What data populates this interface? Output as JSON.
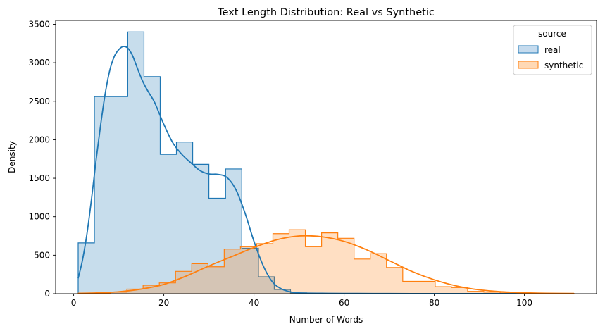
{
  "chart_data": {
    "type": "histogram",
    "title": "Text Length Distribution: Real vs Synthetic",
    "xlabel": "Number of Words",
    "ylabel": "Density",
    "xlim": [
      -4,
      116
    ],
    "ylim": [
      0,
      3550
    ],
    "x_ticks": [
      0,
      20,
      40,
      60,
      80,
      100
    ],
    "y_ticks": [
      0,
      500,
      1000,
      1500,
      2000,
      2500,
      3000,
      3500
    ],
    "grid": false,
    "legend": {
      "title": "source",
      "placement": "top-right",
      "entries": [
        "real",
        "synthetic"
      ]
    },
    "series": [
      {
        "name": "real",
        "color": "#1f77b4",
        "fill": "#c5dbee",
        "bins": [
          {
            "x0": 1,
            "x1": 4.6,
            "y": 660
          },
          {
            "x0": 4.6,
            "x1": 12,
            "y": 2560
          },
          {
            "x0": 12,
            "x1": 15.6,
            "y": 3400
          },
          {
            "x0": 15.6,
            "x1": 19.2,
            "y": 2820
          },
          {
            "x0": 19.2,
            "x1": 22.8,
            "y": 1810
          },
          {
            "x0": 22.8,
            "x1": 26.4,
            "y": 1970
          },
          {
            "x0": 26.4,
            "x1": 30,
            "y": 1680
          },
          {
            "x0": 30,
            "x1": 33.7,
            "y": 1240
          },
          {
            "x0": 33.7,
            "x1": 37.3,
            "y": 1620
          },
          {
            "x0": 37.3,
            "x1": 41,
            "y": 590
          },
          {
            "x0": 41,
            "x1": 44.5,
            "y": 220
          },
          {
            "x0": 44.5,
            "x1": 48.1,
            "y": 55
          },
          {
            "x0": 48.1,
            "x1": 51.7,
            "y": 10
          }
        ],
        "kde": {
          "x": [
            1,
            2,
            3,
            4,
            5,
            6,
            7,
            8,
            9,
            10,
            11,
            12,
            13,
            14,
            15,
            16,
            17,
            18,
            20,
            22,
            24,
            26,
            28,
            30,
            32,
            34,
            36,
            38,
            40,
            42,
            44,
            46,
            48,
            50,
            55,
            60,
            70,
            80,
            90,
            100,
            111
          ],
          "y": [
            200,
            450,
            800,
            1250,
            1750,
            2200,
            2600,
            2900,
            3080,
            3170,
            3210,
            3190,
            3100,
            2950,
            2800,
            2680,
            2580,
            2480,
            2200,
            1960,
            1810,
            1700,
            1600,
            1555,
            1550,
            1510,
            1350,
            1050,
            680,
            370,
            160,
            65,
            25,
            10,
            5,
            3,
            2,
            1,
            1,
            0,
            0
          ]
        }
      },
      {
        "name": "synthetic",
        "color": "#ff7f0e",
        "fill": "#ffd9b5",
        "bins": [
          {
            "x0": 1,
            "x1": 4.6,
            "y": 5
          },
          {
            "x0": 4.6,
            "x1": 8.2,
            "y": 8
          },
          {
            "x0": 8.2,
            "x1": 11.8,
            "y": 20
          },
          {
            "x0": 11.8,
            "x1": 15.4,
            "y": 60
          },
          {
            "x0": 15.4,
            "x1": 19,
            "y": 110
          },
          {
            "x0": 19,
            "x1": 22.6,
            "y": 140
          },
          {
            "x0": 22.6,
            "x1": 26.2,
            "y": 290
          },
          {
            "x0": 26.2,
            "x1": 29.8,
            "y": 390
          },
          {
            "x0": 29.8,
            "x1": 33.4,
            "y": 350
          },
          {
            "x0": 33.4,
            "x1": 37,
            "y": 580
          },
          {
            "x0": 37,
            "x1": 40.6,
            "y": 610
          },
          {
            "x0": 40.6,
            "x1": 44.2,
            "y": 650
          },
          {
            "x0": 44.2,
            "x1": 47.8,
            "y": 780
          },
          {
            "x0": 47.8,
            "x1": 51.4,
            "y": 830
          },
          {
            "x0": 51.4,
            "x1": 55,
            "y": 610
          },
          {
            "x0": 55,
            "x1": 58.6,
            "y": 790
          },
          {
            "x0": 58.6,
            "x1": 62.2,
            "y": 720
          },
          {
            "x0": 62.2,
            "x1": 65.8,
            "y": 450
          },
          {
            "x0": 65.8,
            "x1": 69.4,
            "y": 520
          },
          {
            "x0": 69.4,
            "x1": 73,
            "y": 340
          },
          {
            "x0": 73,
            "x1": 76.6,
            "y": 160
          },
          {
            "x0": 76.6,
            "x1": 80.2,
            "y": 160
          },
          {
            "x0": 80.2,
            "x1": 83.8,
            "y": 90
          },
          {
            "x0": 83.8,
            "x1": 87.4,
            "y": 80
          },
          {
            "x0": 87.4,
            "x1": 91,
            "y": 30
          },
          {
            "x0": 91,
            "x1": 94.6,
            "y": 20
          },
          {
            "x0": 94.6,
            "x1": 98.2,
            "y": 10
          },
          {
            "x0": 98.2,
            "x1": 101.8,
            "y": 8
          },
          {
            "x0": 101.8,
            "x1": 105.4,
            "y": 5
          },
          {
            "x0": 105.4,
            "x1": 111,
            "y": 3
          }
        ],
        "kde": {
          "x": [
            1,
            5,
            10,
            15,
            20,
            25,
            30,
            35,
            40,
            45,
            50,
            55,
            60,
            65,
            70,
            75,
            80,
            85,
            90,
            95,
            100,
            105,
            111
          ],
          "y": [
            5,
            10,
            25,
            60,
            120,
            230,
            360,
            480,
            600,
            700,
            750,
            740,
            680,
            570,
            430,
            290,
            180,
            100,
            50,
            25,
            12,
            6,
            3
          ]
        }
      }
    ]
  }
}
